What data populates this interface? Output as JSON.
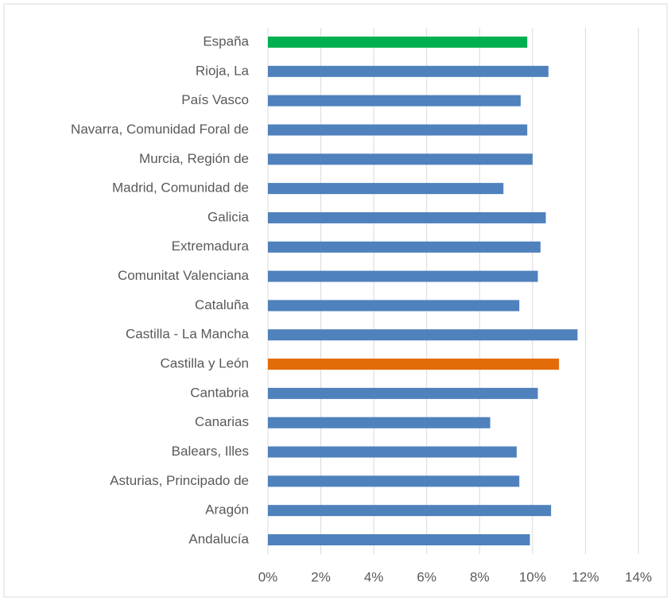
{
  "chart_data": {
    "type": "bar",
    "orientation": "horizontal",
    "categories": [
      "España",
      "Rioja, La",
      "País Vasco",
      "Navarra, Comunidad Foral de",
      "Murcia, Región de",
      "Madrid, Comunidad de",
      "Galicia",
      "Extremadura",
      "Comunitat Valenciana",
      "Cataluña",
      "Castilla - La Mancha",
      "Castilla y León",
      "Cantabria",
      "Canarias",
      "Balears, Illes",
      "Asturias, Principado de",
      "Aragón",
      "Andalucía"
    ],
    "values": [
      9.8,
      10.6,
      9.55,
      9.8,
      10.0,
      8.9,
      10.5,
      10.3,
      10.2,
      9.5,
      11.7,
      11.0,
      10.2,
      8.4,
      9.4,
      9.5,
      10.7,
      9.9
    ],
    "colors": [
      "#00b050",
      "#4f81bd",
      "#4f81bd",
      "#4f81bd",
      "#4f81bd",
      "#4f81bd",
      "#4f81bd",
      "#4f81bd",
      "#4f81bd",
      "#4f81bd",
      "#4f81bd",
      "#e36c09",
      "#4f81bd",
      "#4f81bd",
      "#4f81bd",
      "#4f81bd",
      "#4f81bd",
      "#4f81bd"
    ],
    "xlim": [
      0,
      14
    ],
    "xticks": [
      {
        "value": 0,
        "label": "0%"
      },
      {
        "value": 2,
        "label": "2%"
      },
      {
        "value": 4,
        "label": "4%"
      },
      {
        "value": 6,
        "label": "6%"
      },
      {
        "value": 8,
        "label": "8%"
      },
      {
        "value": 10,
        "label": "10%"
      },
      {
        "value": 12,
        "label": "12%"
      },
      {
        "value": 14,
        "label": "14%"
      }
    ],
    "grid": true
  }
}
